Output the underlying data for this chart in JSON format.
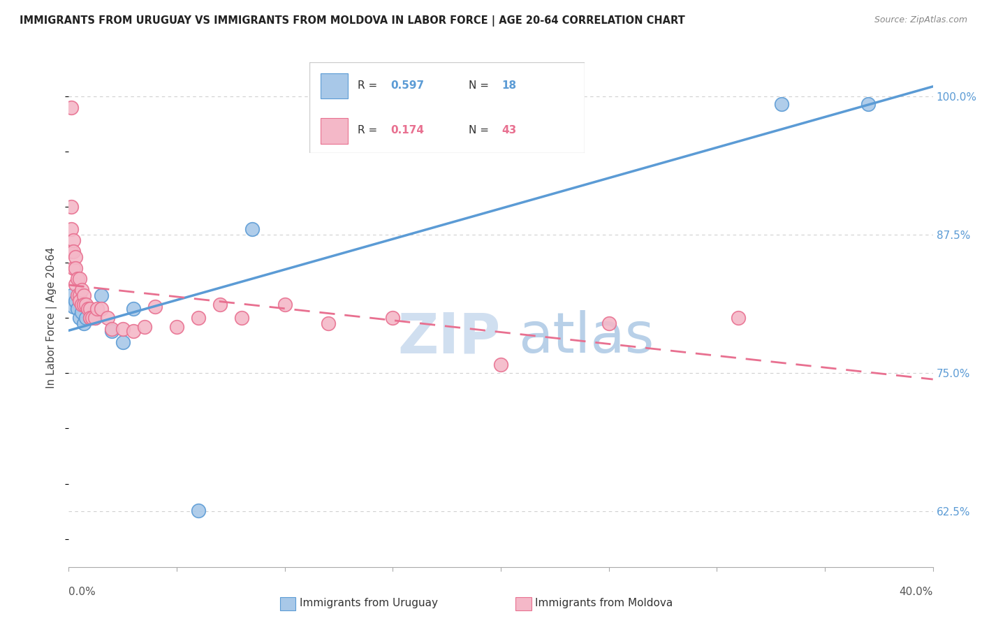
{
  "title": "IMMIGRANTS FROM URUGUAY VS IMMIGRANTS FROM MOLDOVA IN LABOR FORCE | AGE 20-64 CORRELATION CHART",
  "source": "Source: ZipAtlas.com",
  "ylabel_label": "In Labor Force | Age 20-64",
  "legend_label1": "Immigrants from Uruguay",
  "legend_label2": "Immigrants from Moldova",
  "R_uruguay": 0.597,
  "N_uruguay": 18,
  "R_moldova": 0.174,
  "N_moldova": 43,
  "color_uruguay_fill": "#a8c8e8",
  "color_uruguay_edge": "#5b9bd5",
  "color_moldova_fill": "#f4b8c8",
  "color_moldova_edge": "#e87090",
  "color_line_uruguay": "#5b9bd5",
  "color_line_moldova": "#e87090",
  "xlim": [
    0.0,
    0.4
  ],
  "ylim": [
    0.575,
    1.025
  ],
  "yticks": [
    0.625,
    0.75,
    0.875,
    1.0
  ],
  "ytick_labels": [
    "62.5%",
    "75.0%",
    "87.5%",
    "100.0%"
  ],
  "xtick_labels_shown": [
    "0.0%",
    "40.0%"
  ],
  "xtick_positions_shown": [
    0.0,
    0.4
  ],
  "uruguay_x": [
    0.001,
    0.002,
    0.003,
    0.004,
    0.005,
    0.006,
    0.007,
    0.008,
    0.01,
    0.012,
    0.015,
    0.02,
    0.025,
    0.03,
    0.06,
    0.085,
    0.33,
    0.37
  ],
  "uruguay_y": [
    0.82,
    0.81,
    0.815,
    0.808,
    0.8,
    0.805,
    0.795,
    0.8,
    0.8,
    0.8,
    0.82,
    0.788,
    0.778,
    0.808,
    0.626,
    0.88,
    0.993,
    0.993
  ],
  "moldova_x": [
    0.001,
    0.001,
    0.001,
    0.001,
    0.002,
    0.002,
    0.002,
    0.003,
    0.003,
    0.003,
    0.004,
    0.004,
    0.005,
    0.005,
    0.005,
    0.006,
    0.006,
    0.007,
    0.007,
    0.008,
    0.009,
    0.01,
    0.01,
    0.011,
    0.012,
    0.013,
    0.015,
    0.018,
    0.02,
    0.025,
    0.03,
    0.035,
    0.04,
    0.05,
    0.06,
    0.07,
    0.08,
    0.1,
    0.12,
    0.15,
    0.2,
    0.25,
    0.31
  ],
  "moldova_y": [
    0.99,
    0.9,
    0.88,
    0.86,
    0.87,
    0.86,
    0.845,
    0.855,
    0.845,
    0.83,
    0.835,
    0.82,
    0.835,
    0.82,
    0.815,
    0.825,
    0.812,
    0.82,
    0.812,
    0.812,
    0.808,
    0.808,
    0.8,
    0.8,
    0.8,
    0.808,
    0.808,
    0.8,
    0.79,
    0.79,
    0.788,
    0.792,
    0.81,
    0.792,
    0.8,
    0.812,
    0.8,
    0.812,
    0.795,
    0.8,
    0.758,
    0.795,
    0.8
  ],
  "watermark_zip_color": "#d0dff0",
  "watermark_atlas_color": "#b8d0e8",
  "grid_color": "#d0d0d0",
  "ylabel_color": "#444444",
  "ytick_color": "#5b9bd5",
  "title_color": "#222222",
  "source_color": "#888888"
}
